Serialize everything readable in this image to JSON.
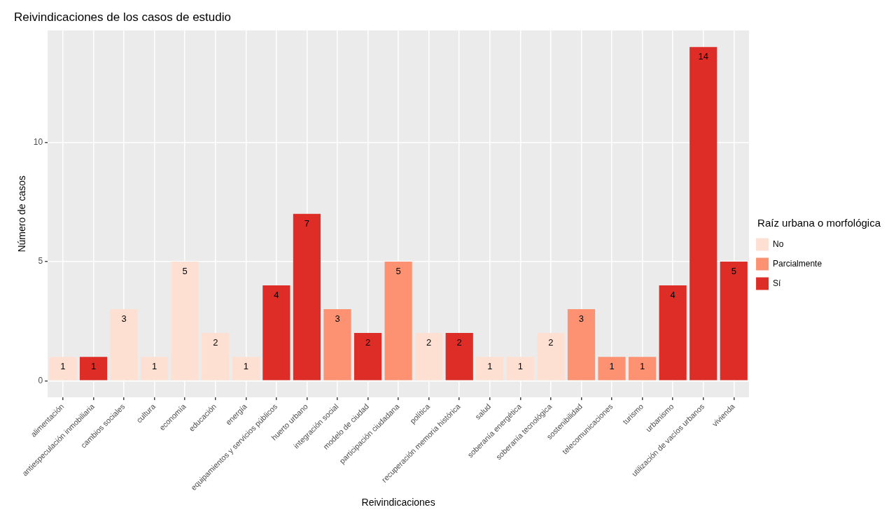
{
  "chart_data": {
    "type": "bar",
    "title": "Reivindicaciones de los casos de estudio",
    "xlabel": "Reivindicaciones",
    "ylabel": "Número de casos",
    "legend_title": "Raíz urbana o morfológica",
    "categories": [
      "alimentación",
      "antiespeculación inmobiliaria",
      "cambios sociales",
      "cultura",
      "economía",
      "educación",
      "energía",
      "equipamientos y servicios públicos",
      "huerto urbano",
      "integración social",
      "modelo de ciudad",
      "participación ciudadana",
      "política",
      "recuperación memoria histórica",
      "salud",
      "soberanía energética",
      "soberanía tecnológica",
      "sostenibilidad",
      "telecomunicaciones",
      "turismo",
      "urbanismo",
      "utilización de vacíos urbanos",
      "vivienda"
    ],
    "series": [
      {
        "name": "No",
        "color": "#fee0d2",
        "values": [
          1,
          null,
          3,
          1,
          5,
          2,
          1,
          null,
          null,
          null,
          null,
          null,
          2,
          null,
          1,
          1,
          2,
          null,
          null,
          null,
          null,
          null,
          null
        ]
      },
      {
        "name": "Parcialmente",
        "color": "#fc9272",
        "values": [
          null,
          null,
          null,
          null,
          null,
          null,
          null,
          null,
          null,
          3,
          null,
          5,
          null,
          null,
          null,
          null,
          null,
          3,
          1,
          1,
          null,
          null,
          null
        ]
      },
      {
        "name": "Sí",
        "color": "#de2d26",
        "values": [
          null,
          1,
          null,
          null,
          null,
          null,
          null,
          4,
          7,
          null,
          2,
          null,
          null,
          2,
          null,
          null,
          null,
          null,
          null,
          null,
          4,
          14,
          5
        ]
      }
    ],
    "ylim": [
      -0.7,
      14.7
    ],
    "yticks": [
      0,
      5,
      10
    ],
    "grid": true,
    "legend": "right",
    "data_labels": true
  }
}
